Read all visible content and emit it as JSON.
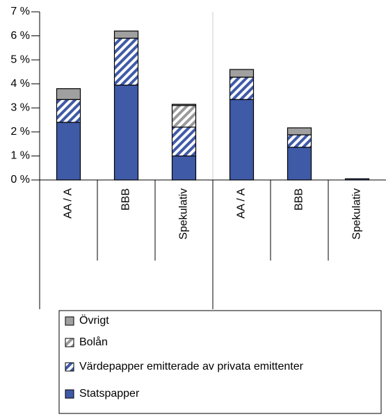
{
  "chart_data": {
    "type": "stacked_bar",
    "categories": [
      "AA / A",
      "BBB",
      "Spekulativ",
      "AA / A",
      "BBB",
      "Spekulativ"
    ],
    "series": [
      {
        "name": "Statspapper",
        "color": "#3f5aa6",
        "hatch": false,
        "values": [
          2.4,
          3.95,
          1.0,
          3.35,
          1.36,
          0.05
        ]
      },
      {
        "name": "Värdepapper emitterade av privata emittenter",
        "color": "#3f5aa6",
        "hatch": true,
        "values": [
          0.95,
          1.95,
          1.2,
          0.93,
          0.52,
          0
        ]
      },
      {
        "name": "Bolån",
        "color": "#9a9a9a",
        "hatch": true,
        "values": [
          0,
          0,
          0.9,
          0,
          0,
          0
        ]
      },
      {
        "name": "Övrigt",
        "color": "#a0a0a0",
        "hatch": false,
        "values": [
          0.45,
          0.3,
          0.05,
          0.32,
          0.29,
          0
        ]
      }
    ],
    "ylim": [
      0,
      7
    ],
    "yticks": [
      {
        "value": 0,
        "label": "0 %"
      },
      {
        "value": 1,
        "label": "1 %"
      },
      {
        "value": 2,
        "label": "2 %"
      },
      {
        "value": 3,
        "label": "3 %"
      },
      {
        "value": 4,
        "label": "4 %"
      },
      {
        "value": 5,
        "label": "5 %"
      },
      {
        "value": 6,
        "label": "6 %"
      },
      {
        "value": 7,
        "label": "7 %"
      }
    ],
    "legend": "bottom"
  }
}
